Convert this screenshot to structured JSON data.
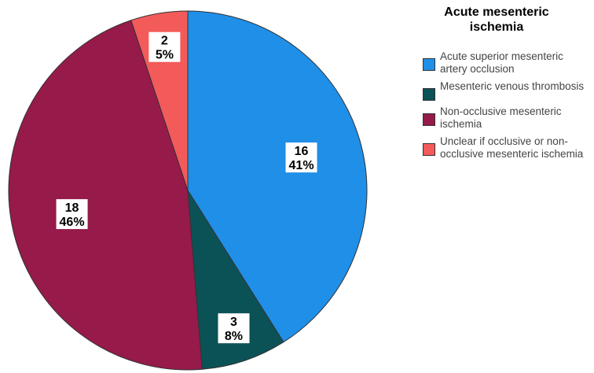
{
  "chart_data": {
    "type": "pie",
    "legend_title": "Acute mesenteric ischemia",
    "legend_position": "right",
    "slices": [
      {
        "label": "Acute superior mesenteric artery occlusion",
        "count": 16,
        "percent_label": "41%",
        "color": "#1f8fe8"
      },
      {
        "label": "Mesenteric venous thrombosis",
        "count": 3,
        "percent_label": "8%",
        "color": "#0b5256"
      },
      {
        "label": "Non-occlusive mesenteric ischemia",
        "count": 18,
        "percent_label": "46%",
        "color": "#961a4a"
      },
      {
        "label": "Unclear if occlusive or non-occlusive mesenteric ischemia",
        "count": 2,
        "percent_label": "5%",
        "color": "#f35b5b"
      }
    ]
  }
}
